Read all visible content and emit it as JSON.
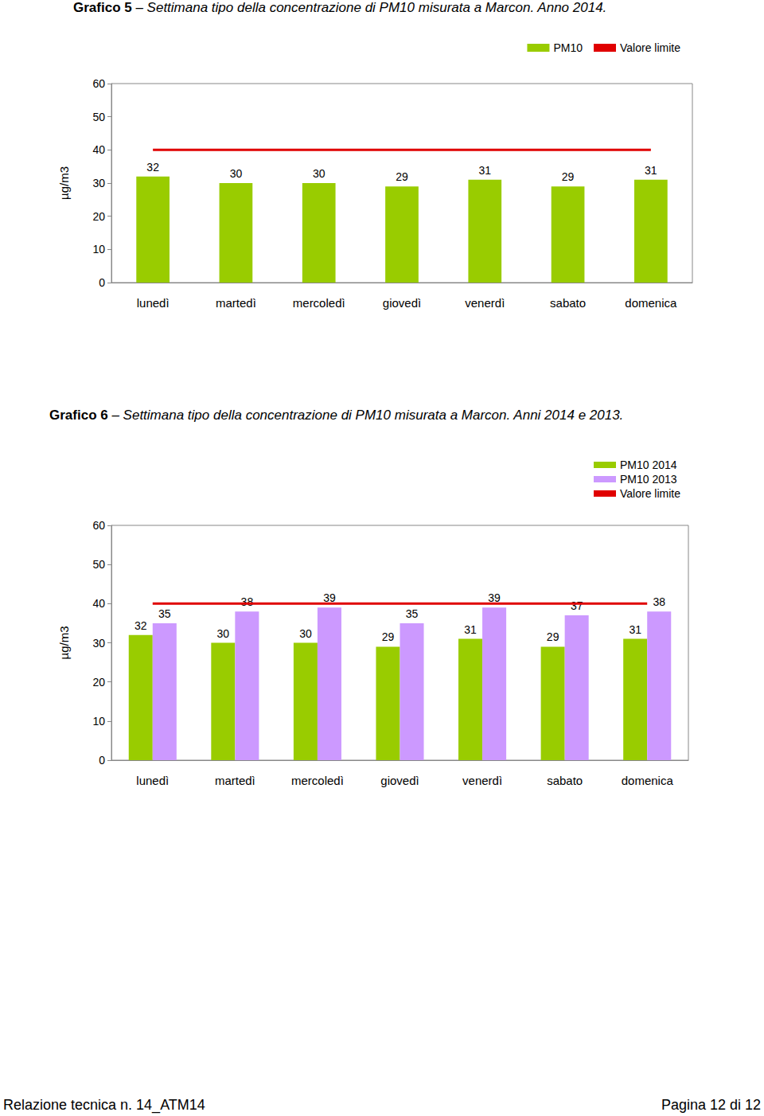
{
  "chart_data": [
    {
      "type": "bar",
      "title": "Grafico 5 – Settimana tipo della concentrazione di PM10 misurata a Marcon. Anno 2014.",
      "y_label": "µg/m3",
      "categories": [
        "lunedì",
        "martedì",
        "mercoledì",
        "giovedì",
        "venerdì",
        "sabato",
        "domenica"
      ],
      "series": [
        {
          "name": "PM10",
          "type": "bar",
          "color": "#99cc00",
          "values": [
            32,
            30,
            30,
            29,
            31,
            29,
            31
          ]
        },
        {
          "name": "Valore limite",
          "type": "line",
          "color": "#e00000",
          "values": [
            40,
            40,
            40,
            40,
            40,
            40,
            40
          ]
        }
      ],
      "ylim": [
        0,
        60
      ],
      "yticks": [
        0,
        10,
        20,
        30,
        40,
        50,
        60
      ],
      "grid": false,
      "legend": "top-right",
      "data_labels": true
    },
    {
      "type": "bar",
      "title": "Grafico 6 – Settimana tipo della concentrazione di PM10 misurata a Marcon. Anni 2014 e 2013.",
      "y_label": "µg/m3",
      "categories": [
        "lunedì",
        "martedì",
        "mercoledì",
        "giovedì",
        "venerdì",
        "sabato",
        "domenica"
      ],
      "series": [
        {
          "name": "PM10 2014",
          "type": "bar",
          "color": "#99cc00",
          "values": [
            32,
            30,
            30,
            29,
            31,
            29,
            31
          ]
        },
        {
          "name": "PM10 2013",
          "type": "bar",
          "color": "#cc99ff",
          "values": [
            35,
            38,
            39,
            35,
            39,
            37,
            38
          ]
        },
        {
          "name": "Valore limite",
          "type": "line",
          "color": "#e00000",
          "values": [
            40,
            40,
            40,
            40,
            40,
            40,
            40
          ]
        }
      ],
      "ylim": [
        0,
        60
      ],
      "yticks": [
        0,
        10,
        20,
        30,
        40,
        50,
        60
      ],
      "grid": false,
      "legend": "top-right",
      "data_labels": true
    }
  ],
  "footer": {
    "left": "Relazione tecnica n. 14_ATM14",
    "right": "Pagina 12 di 12"
  }
}
